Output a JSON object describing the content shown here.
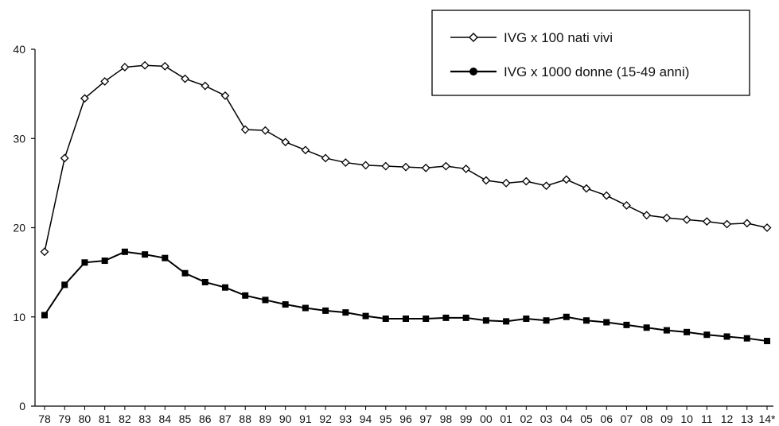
{
  "chart_data": {
    "type": "line",
    "title": "",
    "xlabel": "",
    "ylabel": "",
    "categories": [
      "78",
      "79",
      "80",
      "81",
      "82",
      "83",
      "84",
      "85",
      "86",
      "87",
      "88",
      "89",
      "90",
      "91",
      "92",
      "93",
      "94",
      "95",
      "96",
      "97",
      "98",
      "99",
      "00",
      "01",
      "02",
      "03",
      "04",
      "05",
      "06",
      "07",
      "08",
      "09",
      "10",
      "11",
      "12",
      "13",
      "14*"
    ],
    "series": [
      {
        "name": "IVG x 100 nati vivi",
        "marker": "open-diamond",
        "values": [
          17.3,
          27.8,
          34.5,
          36.4,
          38.0,
          38.2,
          38.1,
          36.7,
          35.9,
          34.8,
          31.0,
          30.9,
          29.6,
          28.7,
          27.8,
          27.3,
          27.0,
          26.9,
          26.8,
          26.7,
          26.9,
          26.6,
          25.3,
          25.0,
          25.2,
          24.7,
          25.4,
          24.4,
          23.6,
          22.5,
          21.4,
          21.1,
          20.9,
          20.7,
          20.4,
          20.5,
          20.0
        ]
      },
      {
        "name": "IVG x 1000 donne (15-49 anni)",
        "marker": "filled-square",
        "values": [
          10.2,
          13.6,
          16.1,
          16.3,
          17.3,
          17.0,
          16.6,
          14.9,
          13.9,
          13.3,
          12.4,
          11.9,
          11.4,
          11.0,
          10.7,
          10.5,
          10.1,
          9.8,
          9.8,
          9.8,
          9.9,
          9.9,
          9.6,
          9.5,
          9.8,
          9.6,
          10.0,
          9.6,
          9.4,
          9.1,
          8.8,
          8.5,
          8.3,
          8.0,
          7.8,
          7.6,
          7.3
        ]
      }
    ],
    "yticks": [
      "0",
      "10",
      "20",
      "30",
      "40"
    ],
    "ylim": [
      0,
      40
    ],
    "grid": false,
    "legend_position": "top-right"
  }
}
